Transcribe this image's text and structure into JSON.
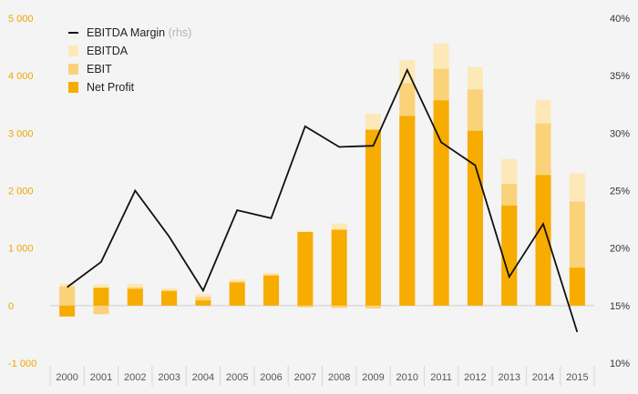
{
  "chart_data": {
    "type": "bar",
    "categories": [
      "2000",
      "2001",
      "2002",
      "2003",
      "2004",
      "2005",
      "2006",
      "2007",
      "2008",
      "2009",
      "2010",
      "2011",
      "2012",
      "2013",
      "2014",
      "2015"
    ],
    "series": [
      {
        "name": "Net Profit",
        "kind": "bar",
        "color": "#f7ac00",
        "values": [
          -190,
          310,
          290,
          250,
          90,
          400,
          520,
          1280,
          1320,
          3060,
          3300,
          3570,
          3040,
          1740,
          2270,
          660
        ]
      },
      {
        "name": "EBIT",
        "kind": "bar",
        "color": "#fad27a",
        "values": [
          330,
          -150,
          320,
          270,
          150,
          420,
          540,
          -30,
          -40,
          -50,
          3870,
          4120,
          3760,
          2120,
          3170,
          1810
        ]
      },
      {
        "name": "EBITDA",
        "kind": "bar",
        "color": "#fde9b8",
        "values": [
          380,
          370,
          380,
          300,
          200,
          460,
          570,
          1300,
          1430,
          3340,
          4270,
          4560,
          4150,
          2550,
          3580,
          2300
        ]
      },
      {
        "name": "EBITDA Margin",
        "suffix": " (rhs)",
        "kind": "line",
        "axis": "right",
        "color": "#111111",
        "values": [
          16.6,
          18.8,
          25.0,
          21.0,
          16.3,
          23.3,
          22.6,
          30.6,
          28.8,
          28.9,
          35.5,
          29.2,
          27.2,
          17.5,
          22.1,
          12.7
        ]
      }
    ],
    "y_left": {
      "ylim": [
        -1000,
        5000
      ],
      "ticks": [
        -1000,
        0,
        1000,
        2000,
        3000,
        4000,
        5000
      ],
      "tick_labels": [
        "-1 000",
        "0",
        "1 000",
        "2 000",
        "3 000",
        "4 000",
        "5 000"
      ]
    },
    "y_right": {
      "ylim": [
        10,
        40
      ],
      "ticks": [
        10,
        15,
        20,
        25,
        30,
        35,
        40
      ],
      "tick_labels": [
        "10%",
        "15%",
        "20%",
        "25%",
        "30%",
        "35%",
        "40%"
      ]
    },
    "legend": {
      "placement": "top-left",
      "order": [
        "EBITDA Margin",
        "EBITDA",
        "EBIT",
        "Net Profit"
      ]
    },
    "colors": {
      "axis_left": "#f0a500",
      "background": "#f4f4f4",
      "baseline": "#cccccc"
    }
  }
}
